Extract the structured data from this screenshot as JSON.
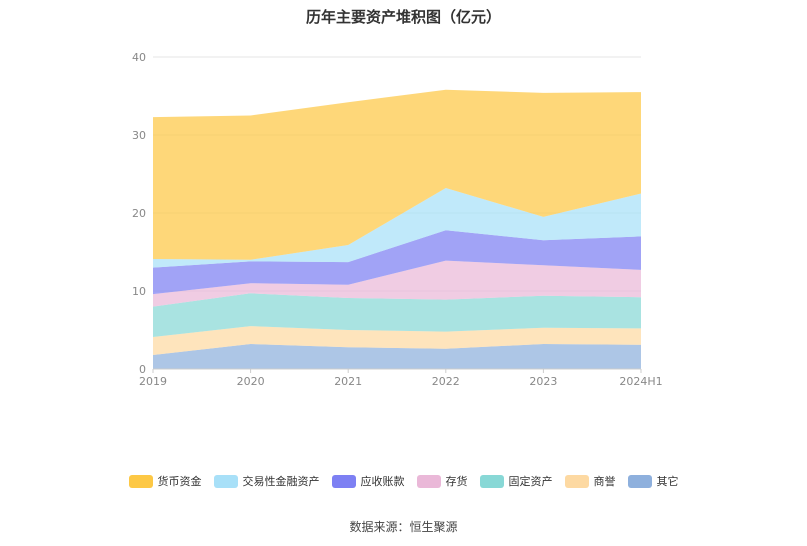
{
  "chart_data": {
    "type": "area",
    "stacked": true,
    "title": "历年主要资产堆积图（亿元）",
    "categories": [
      "2019",
      "2020",
      "2021",
      "2022",
      "2023",
      "2024H1"
    ],
    "ylim": [
      0,
      40
    ],
    "yticks": [
      "0",
      "10",
      "20",
      "30",
      "40"
    ],
    "xlabel": "",
    "ylabel": "",
    "grid": true,
    "legend_position": "bottom",
    "series": [
      {
        "name": "其它",
        "color": "#8eb0dd",
        "values": [
          1.8,
          3.2,
          2.8,
          2.6,
          3.2,
          3.1
        ]
      },
      {
        "name": "商誉",
        "color": "#fdd9a2",
        "values": [
          2.3,
          2.3,
          2.2,
          2.2,
          2.1,
          2.1
        ]
      },
      {
        "name": "固定资产",
        "color": "#88d8d6",
        "values": [
          3.9,
          4.2,
          4.1,
          4.1,
          4.1,
          4.0
        ]
      },
      {
        "name": "存货",
        "color": "#eab8d8",
        "values": [
          1.6,
          1.3,
          1.7,
          5.0,
          3.9,
          3.5
        ]
      },
      {
        "name": "应收账款",
        "color": "#7d80f3",
        "values": [
          3.4,
          2.8,
          2.9,
          3.9,
          3.2,
          4.3
        ]
      },
      {
        "name": "交易性金融资产",
        "color": "#a8e0f8",
        "values": [
          1.1,
          0.2,
          2.2,
          5.4,
          3.0,
          5.5
        ]
      },
      {
        "name": "货币资金",
        "color": "#fdc845",
        "values": [
          18.2,
          18.5,
          18.3,
          12.6,
          15.9,
          13.0
        ]
      }
    ]
  },
  "legend_order": [
    "货币资金",
    "交易性金融资产",
    "应收账款",
    "存货",
    "固定资产",
    "商誉",
    "其它"
  ],
  "source_text": "数据来源：恒生聚源"
}
